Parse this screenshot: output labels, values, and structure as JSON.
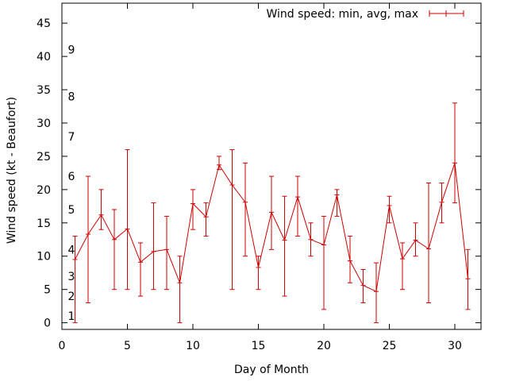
{
  "chart_data": {
    "type": "line",
    "title": "",
    "xlabel": "Day of Month",
    "ylabel": "Wind speed (kt - Beaufort)",
    "xlim": [
      0,
      32
    ],
    "ylim": [
      -1,
      48
    ],
    "x_ticks": [
      "0",
      "5",
      "10",
      "15",
      "20",
      "25",
      "30"
    ],
    "y_ticks": [
      "0",
      "5",
      "10",
      "15",
      "20",
      "25",
      "30",
      "35",
      "40",
      "45"
    ],
    "beaufort_labels": [
      {
        "label": "1",
        "value": 1
      },
      {
        "label": "2",
        "value": 4
      },
      {
        "label": "3",
        "value": 7
      },
      {
        "label": "4",
        "value": 11
      },
      {
        "label": "5",
        "value": 17
      },
      {
        "label": "6",
        "value": 22
      },
      {
        "label": "7",
        "value": 28
      },
      {
        "label": "8",
        "value": 34
      },
      {
        "label": "9",
        "value": 41
      }
    ],
    "legend": "Wind speed: min, avg, max",
    "legend_position": "top-right",
    "color": "#cc0000",
    "series": [
      {
        "name": "Wind speed: min, avg, max",
        "x": [
          1,
          2,
          3,
          4,
          5,
          6,
          7,
          8,
          9,
          10,
          11,
          12,
          13,
          14,
          15,
          16,
          17,
          18,
          19,
          20,
          21,
          22,
          23,
          24,
          25,
          26,
          27,
          28,
          29,
          30,
          31
        ],
        "avg": [
          9.5,
          13.3,
          16.2,
          12.5,
          14.1,
          9.1,
          10.7,
          11,
          6,
          17.9,
          15.9,
          23.7,
          20.7,
          18.1,
          8.3,
          16.6,
          12.4,
          18.9,
          12.5,
          11.7,
          19.2,
          9.3,
          5.6,
          4.7,
          17.6,
          9.6,
          12.4,
          11.1,
          18.1,
          24,
          6.6
        ],
        "min": [
          0,
          3,
          14,
          5,
          5,
          4,
          5,
          5,
          0,
          14,
          13,
          23,
          5,
          10,
          5,
          11,
          4,
          13,
          10,
          2,
          16,
          6,
          3,
          0,
          15,
          5,
          10,
          3,
          15,
          18,
          2
        ],
        "max": [
          13,
          22,
          20,
          17,
          26,
          12,
          18,
          16,
          10,
          20,
          18,
          25,
          26,
          24,
          10,
          22,
          19,
          22,
          15,
          16,
          20,
          13,
          8,
          9,
          19,
          12,
          15,
          21,
          21,
          33,
          11
        ]
      }
    ]
  }
}
